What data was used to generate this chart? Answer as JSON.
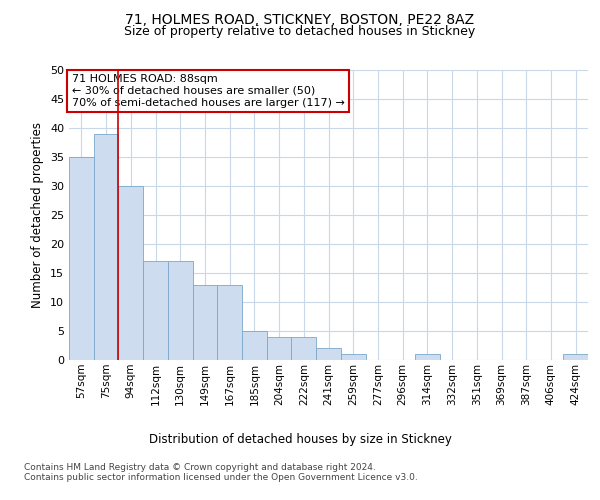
{
  "title1": "71, HOLMES ROAD, STICKNEY, BOSTON, PE22 8AZ",
  "title2": "Size of property relative to detached houses in Stickney",
  "xlabel": "Distribution of detached houses by size in Stickney",
  "ylabel": "Number of detached properties",
  "categories": [
    "57sqm",
    "75sqm",
    "94sqm",
    "112sqm",
    "130sqm",
    "149sqm",
    "167sqm",
    "185sqm",
    "204sqm",
    "222sqm",
    "241sqm",
    "259sqm",
    "277sqm",
    "296sqm",
    "314sqm",
    "332sqm",
    "351sqm",
    "369sqm",
    "387sqm",
    "406sqm",
    "424sqm"
  ],
  "values": [
    35,
    39,
    30,
    17,
    17,
    13,
    13,
    5,
    4,
    4,
    2,
    1,
    0,
    0,
    1,
    0,
    0,
    0,
    0,
    0,
    1
  ],
  "bar_color": "#cddcee",
  "bar_edge_color": "#7ba7cc",
  "vline_color": "#cc0000",
  "annotation_text": "71 HOLMES ROAD: 88sqm\n← 30% of detached houses are smaller (50)\n70% of semi-detached houses are larger (117) →",
  "annotation_box_color": "#ffffff",
  "annotation_box_edge_color": "#cc0000",
  "ylim": [
    0,
    50
  ],
  "yticks": [
    0,
    5,
    10,
    15,
    20,
    25,
    30,
    35,
    40,
    45,
    50
  ],
  "footer": "Contains HM Land Registry data © Crown copyright and database right 2024.\nContains public sector information licensed under the Open Government Licence v3.0.",
  "bg_color": "#ffffff",
  "grid_color": "#c8d8e8"
}
